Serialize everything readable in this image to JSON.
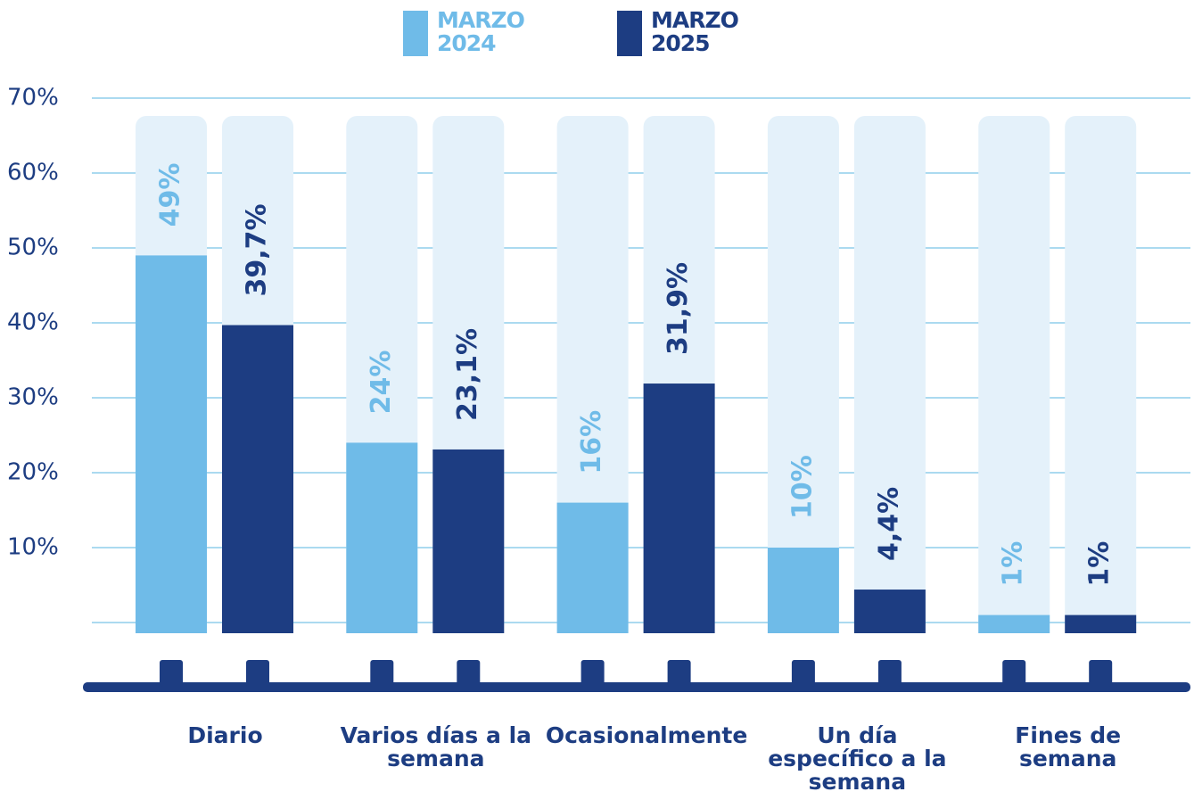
{
  "chart_data": {
    "type": "bar",
    "categories": [
      "Diario",
      "Varios días a la semana",
      "Ocasionalmente",
      "Un día específico a la semana",
      "Fines de semana"
    ],
    "series": [
      {
        "name": "MARZO 2024",
        "color": "#6fbbe8",
        "values": [
          49,
          24,
          16,
          10,
          1
        ],
        "value_labels": [
          "49%",
          "24%",
          "16%",
          "10%",
          "1%"
        ]
      },
      {
        "name": "MARZO 2025",
        "color": "#1d3d82",
        "values": [
          39.7,
          23.1,
          31.9,
          4.4,
          1
        ],
        "value_labels": [
          "39,7%",
          "23,1%",
          "31,9%",
          "4,4%",
          "1%"
        ]
      }
    ],
    "ylim": [
      0,
      70
    ],
    "yticks": [
      {
        "value": 10,
        "label": "10%"
      },
      {
        "value": 20,
        "label": "20%"
      },
      {
        "value": 30,
        "label": "30%"
      },
      {
        "value": 40,
        "label": "40%"
      },
      {
        "value": 50,
        "label": "50%"
      },
      {
        "value": 60,
        "label": "60%"
      },
      {
        "value": 70,
        "label": "70%"
      }
    ],
    "grid": true
  }
}
